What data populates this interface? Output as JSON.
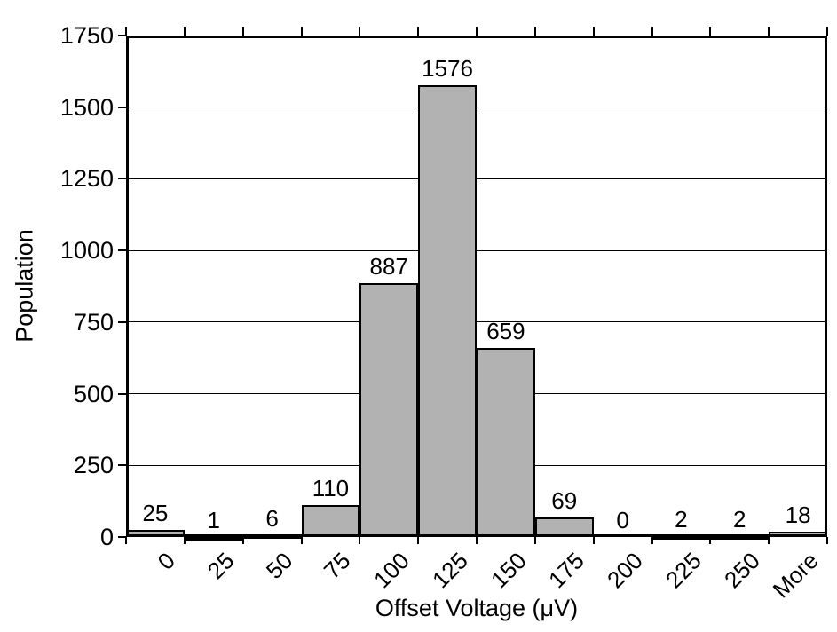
{
  "chart_data": {
    "type": "bar",
    "subtype": "histogram",
    "categories": [
      "0",
      "25",
      "50",
      "75",
      "100",
      "125",
      "150",
      "175",
      "200",
      "225",
      "250",
      "More"
    ],
    "values": [
      25,
      1,
      6,
      110,
      887,
      1576,
      659,
      69,
      0,
      2,
      2,
      18
    ],
    "data_labels": [
      "25",
      "1",
      "6",
      "110",
      "887",
      "1576",
      "659",
      "69",
      "0",
      "2",
      "2",
      "18"
    ],
    "title": "",
    "xlabel": "Offset Voltage (μV)",
    "ylabel": "Population",
    "ylim": [
      0,
      1750
    ],
    "ytick_step": 250,
    "ytick_labels": [
      "0",
      "250",
      "500",
      "750",
      "1000",
      "1250",
      "1500",
      "1750"
    ],
    "grid": "horizontal",
    "legend": "none",
    "bar_fill": "#b2b2b2",
    "bar_border": "#000000",
    "frame_color": "#000000",
    "background": "#ffffff"
  }
}
